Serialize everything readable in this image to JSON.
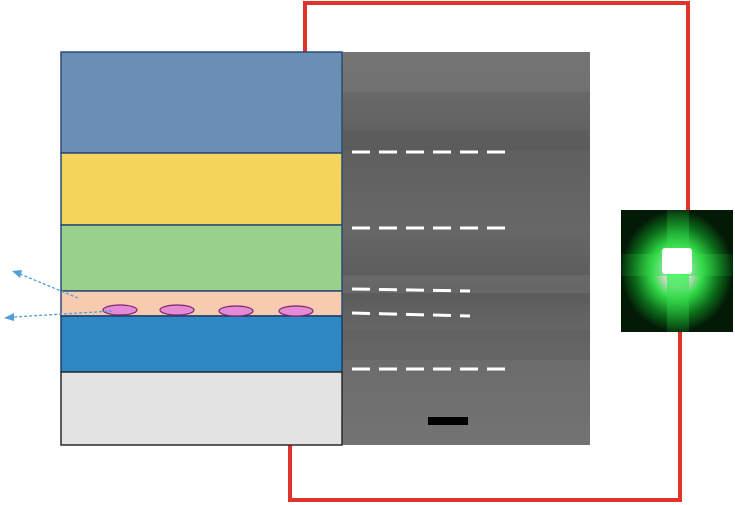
{
  "figure": {
    "description_colors": {
      "wire": "#e0332b",
      "layer_top": "#6b8fb4",
      "layer_yellow": "#f4d45a",
      "layer_green": "#99d08a",
      "layer_active": "#f7cbb0",
      "layer_blue": "#2f87c4",
      "layer_substrate": "#e3e3e3",
      "outline": "#2a4b78",
      "quantum_dot": "#e58ad5",
      "emission_arrow": "#4f9fd6",
      "sem_background": "#6a6a6a",
      "interface_dash": "#ffffff",
      "scale_bar": "#000000",
      "glow": "#2aff4c"
    },
    "layers": [
      {
        "name": "top-layer"
      },
      {
        "name": "yellow-layer"
      },
      {
        "name": "green-layer"
      },
      {
        "name": "active-layer"
      },
      {
        "name": "blue-layer"
      },
      {
        "name": "substrate"
      }
    ],
    "quantum_dot_count": 4,
    "interface_line_count": 5,
    "emission_arrow_count": 2
  }
}
